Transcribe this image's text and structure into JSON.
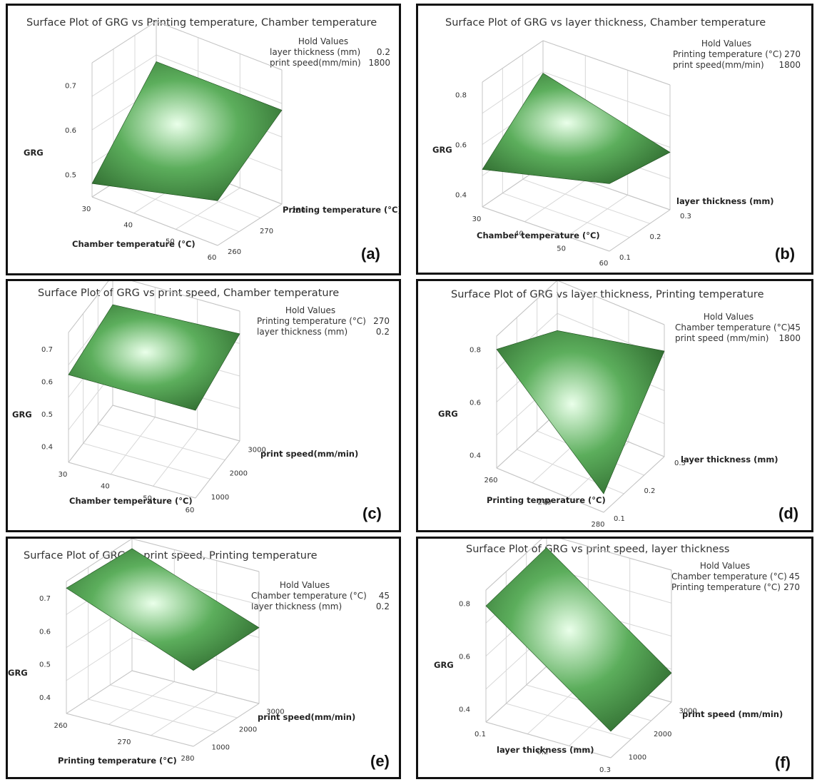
{
  "chart_data": [
    {
      "type": "surface",
      "panel_label": "(a)",
      "title": "Surface Plot of GRG vs Printing temperature, Chamber temperature",
      "hold_values": {
        "header": "Hold Values",
        "rows": [
          {
            "label": "layer thickness (mm)",
            "value": "0.2"
          },
          {
            "label": "print speed(mm/min)",
            "value": "1800"
          }
        ]
      },
      "x": {
        "label": "Chamber temperature (°C)",
        "ticks": [
          "30",
          "40",
          "50",
          "60"
        ],
        "range": [
          30,
          60
        ]
      },
      "y": {
        "label": "Printing temperature (°C)",
        "ticks": [
          "260",
          "270",
          "280"
        ],
        "range": [
          260,
          280
        ]
      },
      "z": {
        "label": "GRG",
        "ticks": [
          "0.5",
          "0.6",
          "0.7"
        ],
        "range": [
          0.45,
          0.75
        ]
      },
      "corners": [
        {
          "x": 30,
          "y": 260,
          "z": 0.48
        },
        {
          "x": 60,
          "y": 260,
          "z": 0.55
        },
        {
          "x": 60,
          "y": 280,
          "z": 0.66
        },
        {
          "x": 30,
          "y": 280,
          "z": 0.66
        }
      ]
    },
    {
      "type": "surface",
      "panel_label": "(b)",
      "title": "Surface Plot of GRG vs layer thickness, Chamber temperature",
      "hold_values": {
        "header": "Hold Values",
        "rows": [
          {
            "label": "Printing temperature (°C)",
            "value": "270"
          },
          {
            "label": "print speed(mm/min)",
            "value": "1800"
          }
        ]
      },
      "x": {
        "label": "Chamber temperature (°C)",
        "ticks": [
          "30",
          "40",
          "50",
          "60"
        ],
        "range": [
          30,
          60
        ]
      },
      "y": {
        "label": "layer thickness (mm)",
        "ticks": [
          "0.1",
          "0.2",
          "0.3"
        ],
        "range": [
          0.1,
          0.3
        ]
      },
      "z": {
        "label": "GRG",
        "ticks": [
          "0.4",
          "0.6",
          "0.8"
        ],
        "range": [
          0.35,
          0.85
        ]
      },
      "corners": [
        {
          "x": 30,
          "y": 0.1,
          "z": 0.5
        },
        {
          "x": 60,
          "y": 0.1,
          "z": 0.62
        },
        {
          "x": 60,
          "y": 0.3,
          "z": 0.58
        },
        {
          "x": 30,
          "y": 0.3,
          "z": 0.72
        }
      ]
    },
    {
      "type": "surface",
      "panel_label": "(c)",
      "title": "Surface Plot of GRG vs print speed, Chamber temperature",
      "hold_values": {
        "header": "Hold Values",
        "rows": [
          {
            "label": "Printing temperature (°C)",
            "value": "270"
          },
          {
            "label": "layer thickness (mm)",
            "value": "0.2"
          }
        ]
      },
      "x": {
        "label": "Chamber temperature (°C)",
        "ticks": [
          "30",
          "40",
          "50",
          "60"
        ],
        "range": [
          30,
          60
        ]
      },
      "y": {
        "label": "print speed(mm/min)",
        "ticks": [
          "1000",
          "2000",
          "3000"
        ],
        "range": [
          700,
          3100
        ]
      },
      "z": {
        "label": "GRG",
        "ticks": [
          "0.4",
          "0.5",
          "0.6",
          "0.7"
        ],
        "range": [
          0.35,
          0.75
        ]
      },
      "corners": [
        {
          "x": 30,
          "y": 700,
          "z": 0.62
        },
        {
          "x": 60,
          "y": 700,
          "z": 0.62
        },
        {
          "x": 60,
          "y": 3100,
          "z": 0.68
        },
        {
          "x": 30,
          "y": 3100,
          "z": 0.66
        }
      ]
    },
    {
      "type": "surface",
      "panel_label": "(d)",
      "title": "Surface Plot of GRG vs layer thickness, Printing temperature",
      "hold_values": {
        "header": "Hold Values",
        "rows": [
          {
            "label": "Chamber temperature (°C)",
            "value": "45"
          },
          {
            "label": "print speed (mm/min)",
            "value": "1800"
          }
        ]
      },
      "x": {
        "label": "Printing temperature (°C)",
        "ticks": [
          "260",
          "270",
          "280"
        ],
        "range": [
          260,
          280
        ]
      },
      "y": {
        "label": "layer thickness (mm)",
        "ticks": [
          "0.1",
          "0.2",
          "0.3"
        ],
        "range": [
          0.1,
          0.3
        ]
      },
      "z": {
        "label": "GRG",
        "ticks": [
          "0.4",
          "0.6",
          "0.8"
        ],
        "range": [
          0.35,
          0.85
        ]
      },
      "corners": [
        {
          "x": 260,
          "y": 0.1,
          "z": 0.8
        },
        {
          "x": 280,
          "y": 0.1,
          "z": 0.42
        },
        {
          "x": 280,
          "y": 0.3,
          "z": 0.75
        },
        {
          "x": 260,
          "y": 0.3,
          "z": 0.66
        }
      ]
    },
    {
      "type": "surface",
      "panel_label": "(e)",
      "title": "Surface Plot of GRG vs print speed, Printing temperature",
      "hold_values": {
        "header": "Hold Values",
        "rows": [
          {
            "label": "Chamber temperature (°C)",
            "value": "45"
          },
          {
            "label": "layer thickness (mm)",
            "value": "0.2"
          }
        ]
      },
      "x": {
        "label": "Printing temperature (°C)",
        "ticks": [
          "260",
          "270",
          "280"
        ],
        "range": [
          260,
          280
        ]
      },
      "y": {
        "label": "print speed(mm/min)",
        "ticks": [
          "1000",
          "2000",
          "3000"
        ],
        "range": [
          700,
          3100
        ]
      },
      "z": {
        "label": "GRG",
        "ticks": [
          "0.4",
          "0.5",
          "0.6",
          "0.7"
        ],
        "range": [
          0.35,
          0.75
        ]
      },
      "corners": [
        {
          "x": 260,
          "y": 700,
          "z": 0.73
        },
        {
          "x": 280,
          "y": 700,
          "z": 0.58
        },
        {
          "x": 280,
          "y": 3100,
          "z": 0.58
        },
        {
          "x": 260,
          "y": 3100,
          "z": 0.72
        }
      ]
    },
    {
      "type": "surface",
      "panel_label": "(f)",
      "title": "Surface Plot of GRG vs print speed, layer thickness",
      "hold_values": {
        "header": "Hold Values",
        "rows": [
          {
            "label": "Chamber temperature (°C)",
            "value": "45"
          },
          {
            "label": "Printing temperature (°C)",
            "value": "270"
          }
        ]
      },
      "x": {
        "label": "layer thickness (mm)",
        "ticks": [
          "0.1",
          "0.2",
          "0.3"
        ],
        "range": [
          0.1,
          0.3
        ]
      },
      "y": {
        "label": "print speed (mm/min)",
        "ticks": [
          "1000",
          "2000",
          "3000"
        ],
        "range": [
          700,
          3100
        ]
      },
      "z": {
        "label": "GRG",
        "ticks": [
          "0.4",
          "0.6",
          "0.8"
        ],
        "range": [
          0.35,
          0.85
        ]
      },
      "corners": [
        {
          "x": 0.1,
          "y": 700,
          "z": 0.79
        },
        {
          "x": 0.3,
          "y": 700,
          "z": 0.45
        },
        {
          "x": 0.3,
          "y": 3100,
          "z": 0.46
        },
        {
          "x": 0.1,
          "y": 3100,
          "z": 0.8
        }
      ]
    }
  ],
  "colors": {
    "surface_light": "#eaffea",
    "surface_mid": "#5cae5c",
    "surface_dark": "#1c4d1c",
    "frame": "#111111"
  }
}
